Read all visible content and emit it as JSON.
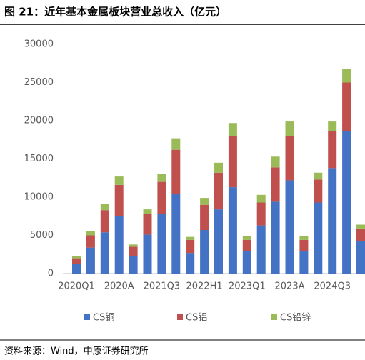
{
  "chart_data": {
    "type": "bar",
    "stacked": true,
    "title": "图 21：近年基本金属板块营业总收入（亿元）",
    "source": "资料来源：Wind，中原证券研究所",
    "categories": [
      "2020Q1",
      null,
      null,
      "2020A",
      null,
      null,
      "2021Q3",
      null,
      null,
      "2022H1",
      null,
      null,
      "2023Q1",
      null,
      null,
      "2023A",
      null,
      null,
      "2024Q3",
      null,
      null
    ],
    "series": [
      {
        "name": "CS铜",
        "color": "#4472c4",
        "values": [
          1300,
          3400,
          5400,
          7500,
          2300,
          5100,
          7800,
          10400,
          2700,
          5700,
          8400,
          11300,
          2900,
          6300,
          9400,
          12200,
          2900,
          9300,
          13800,
          18600,
          4300
        ]
      },
      {
        "name": "CS铝",
        "color": "#c0504d",
        "values": [
          700,
          1600,
          2900,
          4100,
          1200,
          2700,
          4200,
          5800,
          1700,
          3300,
          4800,
          6700,
          1500,
          3000,
          4500,
          5800,
          1500,
          3000,
          4800,
          6400,
          1600
        ]
      },
      {
        "name": "CS铅锌",
        "color": "#9bbb59",
        "values": [
          300,
          600,
          800,
          1100,
          300,
          600,
          1000,
          1500,
          400,
          900,
          1300,
          1700,
          500,
          1000,
          1400,
          1900,
          500,
          900,
          1300,
          1800,
          500
        ]
      }
    ],
    "ylim": [
      0,
      30000
    ],
    "yticks": [
      0,
      5000,
      10000,
      15000,
      20000,
      25000,
      30000
    ],
    "grid": false,
    "legend": "bottom"
  }
}
